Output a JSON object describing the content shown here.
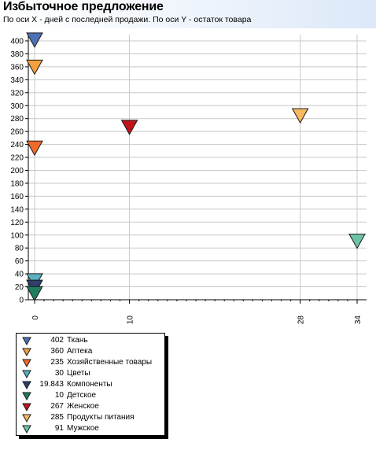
{
  "title": "Избыточное предложение",
  "subtitle": "По оси X - дней с последней продажи. По оси Y - остаток товара",
  "chart_data": {
    "type": "scatter",
    "marker": "triangle-down",
    "x_ticks": [
      0,
      10,
      28,
      34
    ],
    "y_ticks": [
      0,
      20,
      40,
      60,
      80,
      100,
      120,
      140,
      160,
      180,
      200,
      220,
      240,
      260,
      280,
      300,
      320,
      340,
      360,
      380,
      400
    ],
    "xlim": [
      0,
      35
    ],
    "ylim": [
      0,
      410
    ],
    "grid": true,
    "legend_position": "bottom-left",
    "series": [
      {
        "name": "Ткань",
        "label": "402",
        "x": 0,
        "y": 402,
        "color": "#4d6fb5"
      },
      {
        "name": "Аптека",
        "label": "360",
        "x": 0,
        "y": 360,
        "color": "#f4a040"
      },
      {
        "name": "Хозяйственные товары",
        "label": "235",
        "x": 0,
        "y": 235,
        "color": "#f06a2a"
      },
      {
        "name": "Цветы",
        "label": "30",
        "x": 0,
        "y": 30,
        "color": "#5ab0c0"
      },
      {
        "name": "Компоненты",
        "label": "19.843",
        "x": 0,
        "y": 19.843,
        "color": "#2e3f6e"
      },
      {
        "name": "Детское",
        "label": "10",
        "x": 0,
        "y": 10,
        "color": "#1e7d5e"
      },
      {
        "name": "Женское",
        "label": "267",
        "x": 10,
        "y": 267,
        "color": "#c0141c"
      },
      {
        "name": "Продукты питания",
        "label": "285",
        "x": 28,
        "y": 285,
        "color": "#f8b862"
      },
      {
        "name": "Мужское",
        "label": "91",
        "x": 34,
        "y": 91,
        "color": "#6cc2a6"
      }
    ]
  }
}
